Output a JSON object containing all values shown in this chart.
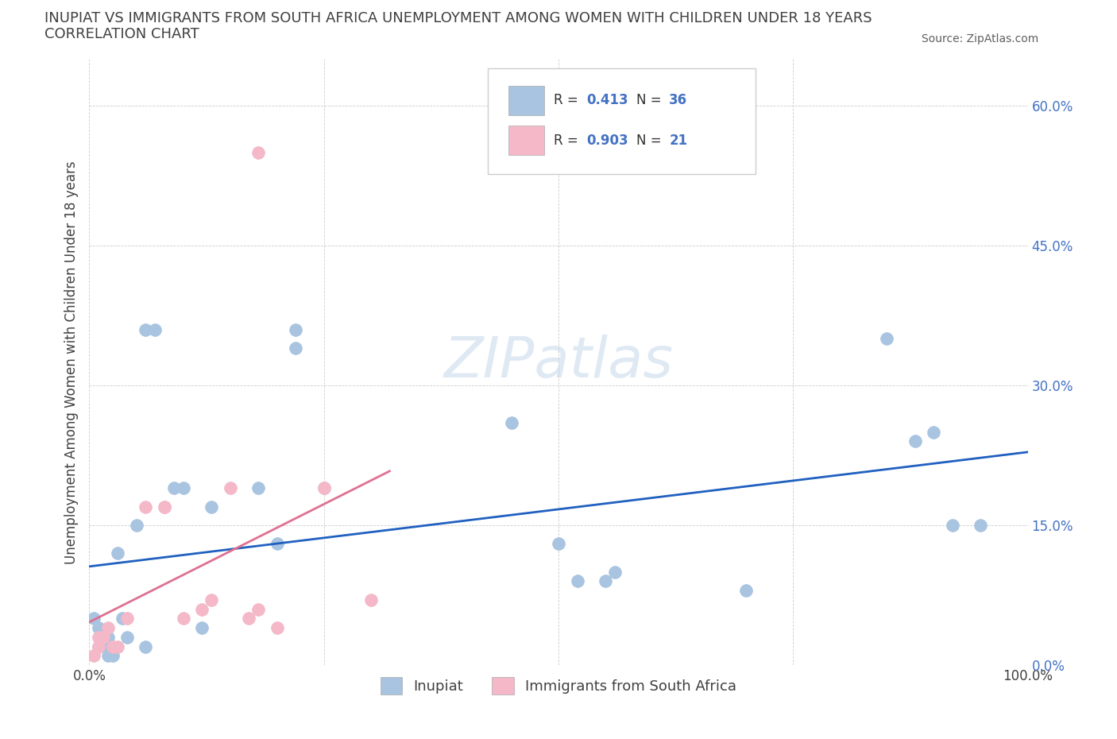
{
  "title_line1": "INUPIAT VS IMMIGRANTS FROM SOUTH AFRICA UNEMPLOYMENT AMONG WOMEN WITH CHILDREN UNDER 18 YEARS",
  "title_line2": "CORRELATION CHART",
  "source": "Source: ZipAtlas.com",
  "ylabel": "Unemployment Among Women with Children Under 18 years",
  "xlim": [
    0,
    1.0
  ],
  "ylim": [
    0,
    0.65
  ],
  "xticks": [
    0.0,
    0.25,
    0.5,
    0.75,
    1.0
  ],
  "xtick_labels": [
    "0.0%",
    "",
    "",
    "",
    "100.0%"
  ],
  "ytick_labels": [
    "0.0%",
    "15.0%",
    "30.0%",
    "45.0%",
    "60.0%"
  ],
  "yticks": [
    0.0,
    0.15,
    0.3,
    0.45,
    0.6
  ],
  "watermark": "ZIPatlas",
  "inupiat_color": "#a8c4e0",
  "sa_color": "#f4b8c8",
  "inupiat_line_color": "#2060c0",
  "sa_line_color": "#e07090",
  "legend_r1": "0.413",
  "legend_n1": "36",
  "legend_r2": "0.903",
  "legend_n2": "21",
  "inupiat_x": [
    0.005,
    0.01,
    0.01,
    0.015,
    0.02,
    0.02,
    0.02,
    0.025,
    0.025,
    0.03,
    0.035,
    0.04,
    0.05,
    0.06,
    0.06,
    0.07,
    0.09,
    0.1,
    0.12,
    0.13,
    0.18,
    0.2,
    0.22,
    0.22,
    0.25,
    0.45,
    0.5,
    0.52,
    0.55,
    0.56,
    0.7,
    0.85,
    0.88,
    0.9,
    0.92,
    0.95
  ],
  "inupiat_y": [
    0.05,
    0.02,
    0.04,
    0.03,
    0.01,
    0.02,
    0.03,
    0.01,
    0.02,
    0.12,
    0.05,
    0.03,
    0.15,
    0.02,
    0.36,
    0.36,
    0.19,
    0.19,
    0.04,
    0.17,
    0.19,
    0.13,
    0.36,
    0.34,
    0.19,
    0.26,
    0.13,
    0.09,
    0.09,
    0.1,
    0.08,
    0.35,
    0.24,
    0.25,
    0.15,
    0.15
  ],
  "sa_x": [
    0.005,
    0.01,
    0.01,
    0.015,
    0.02,
    0.025,
    0.03,
    0.04,
    0.06,
    0.08,
    0.08,
    0.1,
    0.12,
    0.13,
    0.15,
    0.17,
    0.18,
    0.18,
    0.2,
    0.25,
    0.3
  ],
  "sa_y": [
    0.01,
    0.02,
    0.03,
    0.03,
    0.04,
    0.02,
    0.02,
    0.05,
    0.17,
    0.17,
    0.17,
    0.05,
    0.06,
    0.07,
    0.19,
    0.05,
    0.06,
    0.55,
    0.04,
    0.19,
    0.07
  ],
  "background_color": "#ffffff",
  "title_color": "#404040",
  "axis_color": "#404040"
}
